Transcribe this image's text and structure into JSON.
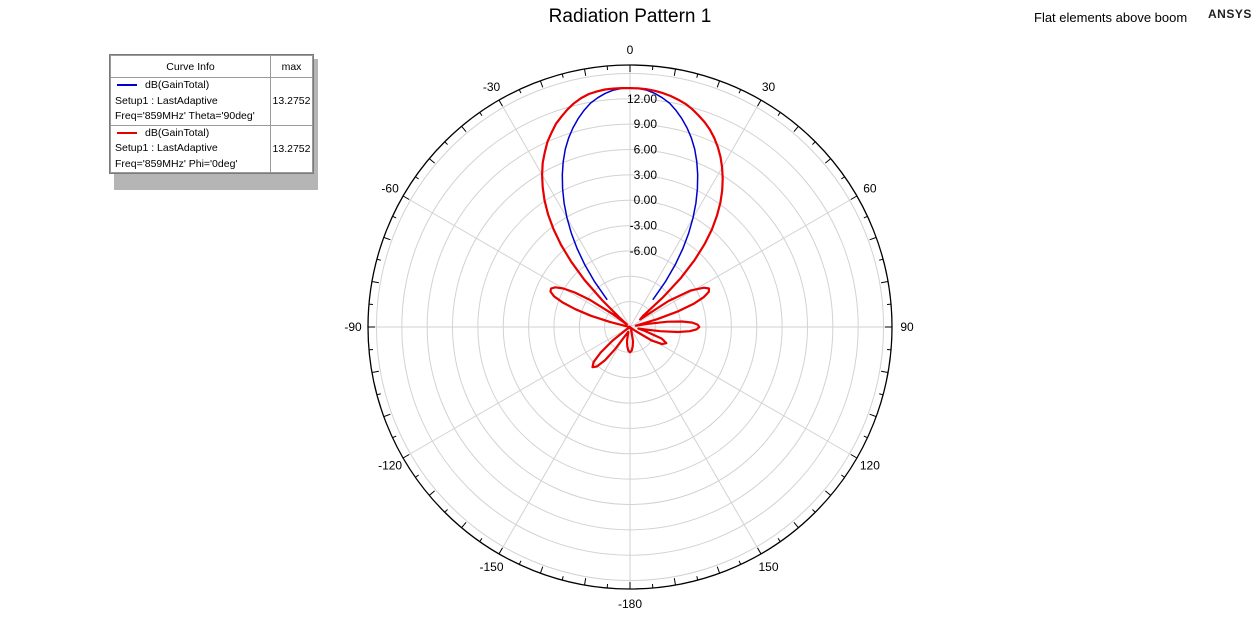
{
  "header": {
    "title": "Radiation Pattern 1",
    "subtitle": "Flat elements above boom",
    "brand": "ANSYS"
  },
  "legend": {
    "col_name": "Curve Info",
    "col_max": "max",
    "curves": [
      {
        "line1": "dB(GainTotal)",
        "line2": "Setup1 : LastAdaptive",
        "line3": "Freq='859MHz' Theta='90deg'",
        "max": "13.2752",
        "color": "#0000cc"
      },
      {
        "line1": "dB(GainTotal)",
        "line2": "Setup1 : LastAdaptive",
        "line3": "Freq='859MHz' Phi='0deg'",
        "max": "13.2752",
        "color": "#e60000"
      }
    ]
  },
  "chart_data": {
    "type": "polar",
    "title": "Radiation Pattern 1",
    "angle_ticks": [
      0,
      30,
      60,
      90,
      120,
      150,
      -180,
      -150,
      -120,
      -90,
      -60,
      -30
    ],
    "radial_ticks": [
      "-6.00",
      "-3.00",
      "0.00",
      "3.00",
      "6.00",
      "9.00",
      "12.00"
    ],
    "radial_range": [
      -15,
      16
    ],
    "series": [
      {
        "name": "Freq='859MHz' Theta='90deg'",
        "color": "#0000cc",
        "points": [
          [
            -40,
            -10.8
          ],
          [
            -38,
            -8.2
          ],
          [
            -36,
            -5.9
          ],
          [
            -34,
            -3.8
          ],
          [
            -32,
            -1.9
          ],
          [
            -30,
            -0.1
          ],
          [
            -28,
            1.6
          ],
          [
            -26,
            3.2
          ],
          [
            -24,
            4.7
          ],
          [
            -22,
            6.1
          ],
          [
            -20,
            7.4
          ],
          [
            -18,
            8.5
          ],
          [
            -16,
            9.5
          ],
          [
            -14,
            10.4
          ],
          [
            -12,
            11.2
          ],
          [
            -10,
            11.9
          ],
          [
            -8,
            12.4
          ],
          [
            -6,
            12.8
          ],
          [
            -4,
            13.1
          ],
          [
            -2,
            13.25
          ],
          [
            0,
            13.28
          ],
          [
            2,
            13.25
          ],
          [
            4,
            13.1
          ],
          [
            6,
            12.8
          ],
          [
            8,
            12.4
          ],
          [
            10,
            11.9
          ],
          [
            12,
            11.2
          ],
          [
            14,
            10.4
          ],
          [
            16,
            9.5
          ],
          [
            18,
            8.5
          ],
          [
            20,
            7.4
          ],
          [
            22,
            6.1
          ],
          [
            24,
            4.7
          ],
          [
            26,
            3.2
          ],
          [
            28,
            1.6
          ],
          [
            30,
            -0.1
          ],
          [
            32,
            -1.9
          ],
          [
            34,
            -3.8
          ],
          [
            36,
            -5.9
          ],
          [
            38,
            -8.2
          ],
          [
            40,
            -10.8
          ]
        ]
      },
      {
        "name": "Freq='859MHz' Phi='0deg'",
        "color": "#e60000",
        "points": [
          [
            -46,
            -10.5
          ],
          [
            -44,
            -7.2
          ],
          [
            -42,
            -4.6
          ],
          [
            -40,
            -2.3
          ],
          [
            -38,
            -0.3
          ],
          [
            -36,
            1.5
          ],
          [
            -34,
            3.1
          ],
          [
            -32,
            4.5
          ],
          [
            -30,
            5.8
          ],
          [
            -28,
            7.0
          ],
          [
            -26,
            8.0
          ],
          [
            -24,
            9.0
          ],
          [
            -22,
            9.8
          ],
          [
            -20,
            10.6
          ],
          [
            -18,
            11.2
          ],
          [
            -16,
            11.8
          ],
          [
            -14,
            12.3
          ],
          [
            -12,
            12.7
          ],
          [
            -10,
            13.0
          ],
          [
            -8,
            13.15
          ],
          [
            -6,
            13.25
          ],
          [
            -4,
            13.28
          ],
          [
            -2,
            13.28
          ],
          [
            0,
            13.27
          ],
          [
            2,
            13.25
          ],
          [
            4,
            13.2
          ],
          [
            6,
            13.1
          ],
          [
            8,
            12.95
          ],
          [
            10,
            12.75
          ],
          [
            12,
            12.5
          ],
          [
            14,
            12.2
          ],
          [
            16,
            11.8
          ],
          [
            18,
            11.3
          ],
          [
            20,
            10.8
          ],
          [
            22,
            10.2
          ],
          [
            24,
            9.5
          ],
          [
            26,
            8.7
          ],
          [
            28,
            7.8
          ],
          [
            30,
            6.8
          ],
          [
            32,
            5.7
          ],
          [
            34,
            4.5
          ],
          [
            36,
            3.2
          ],
          [
            38,
            1.7
          ],
          [
            40,
            0.1
          ],
          [
            42,
            -1.8
          ],
          [
            44,
            -4.0
          ],
          [
            46,
            -6.6
          ],
          [
            48,
            -9.8
          ],
          [
            50,
            -13.0
          ],
          [
            53,
            -13.5
          ],
          [
            56,
            -9.5
          ],
          [
            59,
            -6.6
          ],
          [
            62,
            -5.1
          ],
          [
            64,
            -4.6
          ],
          [
            66,
            -4.8
          ],
          [
            68,
            -5.6
          ],
          [
            70,
            -7.0
          ],
          [
            72,
            -9.0
          ],
          [
            74,
            -11.7
          ],
          [
            77,
            -14.3
          ],
          [
            80,
            -12.8
          ],
          [
            82,
            -10.5
          ],
          [
            84,
            -8.8
          ],
          [
            86,
            -7.6
          ],
          [
            88,
            -7.0
          ],
          [
            90,
            -6.8
          ],
          [
            92,
            -7.1
          ],
          [
            94,
            -7.9
          ],
          [
            96,
            -9.3
          ],
          [
            98,
            -11.4
          ],
          [
            101,
            -14.0
          ],
          [
            105,
            -13.2
          ],
          [
            110,
            -11.0
          ],
          [
            114,
            -10.3
          ],
          [
            118,
            -10.7
          ],
          [
            122,
            -12.0
          ],
          [
            126,
            -14.2
          ],
          [
            140,
            -14.9
          ],
          [
            160,
            -14.6
          ],
          [
            168,
            -13.3
          ],
          [
            172,
            -12.7
          ],
          [
            176,
            -12.2
          ],
          [
            180,
            -12.0
          ],
          [
            -176,
            -12.2
          ],
          [
            -172,
            -12.7
          ],
          [
            -168,
            -13.3
          ],
          [
            -160,
            -14.4
          ],
          [
            -150,
            -13.6
          ],
          [
            -146,
            -11.8
          ],
          [
            -143,
            -10.1
          ],
          [
            -140,
            -8.9
          ],
          [
            -137,
            -8.5
          ],
          [
            -134,
            -9.0
          ],
          [
            -131,
            -10.4
          ],
          [
            -128,
            -12.4
          ],
          [
            -124,
            -14.5
          ],
          [
            -100,
            -15.0
          ],
          [
            -80,
            -14.8
          ],
          [
            -76,
            -12.6
          ],
          [
            -74,
            -10.2
          ],
          [
            -72,
            -8.2
          ],
          [
            -70,
            -6.5
          ],
          [
            -68,
            -5.3
          ],
          [
            -66,
            -4.7
          ],
          [
            -64,
            -4.6
          ],
          [
            -62,
            -5.0
          ],
          [
            -60,
            -5.9
          ],
          [
            -58,
            -7.3
          ],
          [
            -56,
            -9.2
          ],
          [
            -53,
            -12.5
          ],
          [
            -50,
            -14.5
          ],
          [
            -48,
            -13.2
          ],
          [
            -46,
            -10.5
          ]
        ]
      }
    ]
  }
}
